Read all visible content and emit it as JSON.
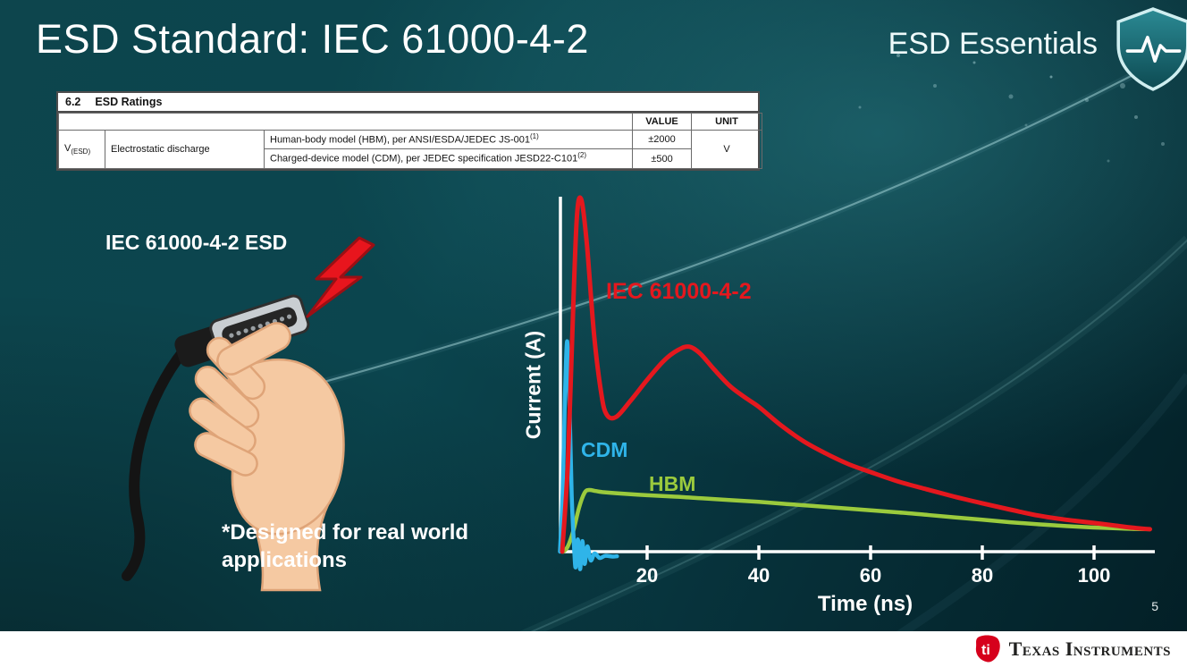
{
  "slide": {
    "title": "ESD Standard: IEC 61000-4-2",
    "brand": "ESD Essentials",
    "page_number": "5"
  },
  "footer": {
    "logo_text": "Texas Instruments",
    "logo_mark": "ti"
  },
  "ratings_table": {
    "section_number": "6.2",
    "section_title": "ESD Ratings",
    "headers": {
      "value": "VALUE",
      "unit": "UNIT"
    },
    "symbol_base": "V",
    "symbol_sub": "(ESD)",
    "parameter": "Electrostatic discharge",
    "rows": [
      {
        "condition": "Human-body model (HBM), per ANSI/ESDA/JEDEC JS-001",
        "condition_sup": "(1)",
        "value": "±2000"
      },
      {
        "condition": "Charged-device model (CDM), per JEDEC specification JESD22-C101",
        "condition_sup": "(2)",
        "value": "±500"
      }
    ],
    "unit": "V"
  },
  "left_panel": {
    "caption": "IEC 61000-4-2 ESD",
    "note": "*Designed for real world\napplications"
  },
  "chart_data": {
    "type": "line",
    "title": "",
    "xlabel": "Time (ns)",
    "ylabel": "Current (A)",
    "xlim": [
      0,
      112
    ],
    "ylim": [
      -0.08,
      1.05
    ],
    "xticks": [
      20,
      40,
      60,
      80,
      100
    ],
    "grid": false,
    "legend_position": "inline-annotations",
    "axis_color": "#ffffff",
    "series": [
      {
        "name": "IEC 61000-4-2",
        "color": "#e4181e",
        "width": 5,
        "points": [
          [
            4.8,
            0
          ],
          [
            5.8,
            0.25
          ],
          [
            6.6,
            0.62
          ],
          [
            7.4,
            0.95
          ],
          [
            8.2,
            1.005
          ],
          [
            9.2,
            0.88
          ],
          [
            10.5,
            0.62
          ],
          [
            11.8,
            0.45
          ],
          [
            12.8,
            0.39
          ],
          [
            14.5,
            0.385
          ],
          [
            17,
            0.43
          ],
          [
            20,
            0.49
          ],
          [
            23,
            0.545
          ],
          [
            25.5,
            0.575
          ],
          [
            27.5,
            0.585
          ],
          [
            29.5,
            0.565
          ],
          [
            32,
            0.52
          ],
          [
            35,
            0.47
          ],
          [
            38,
            0.435
          ],
          [
            40,
            0.413
          ],
          [
            44,
            0.36
          ],
          [
            48,
            0.315
          ],
          [
            52,
            0.28
          ],
          [
            56,
            0.25
          ],
          [
            60,
            0.227
          ],
          [
            65,
            0.2
          ],
          [
            70,
            0.178
          ],
          [
            75,
            0.157
          ],
          [
            80,
            0.138
          ],
          [
            85,
            0.12
          ],
          [
            90,
            0.103
          ],
          [
            95,
            0.091
          ],
          [
            100,
            0.082
          ],
          [
            104,
            0.074
          ],
          [
            107,
            0.068
          ],
          [
            110,
            0.064
          ]
        ]
      },
      {
        "name": "CDM",
        "color": "#2fb4e9",
        "width": 4.5,
        "points": [
          [
            4.4,
            0
          ],
          [
            4.9,
            0.18
          ],
          [
            5.3,
            0.45
          ],
          [
            5.7,
            0.6
          ],
          [
            6.1,
            0.42
          ],
          [
            6.5,
            0.16
          ],
          [
            6.9,
            0.02
          ],
          [
            7.2,
            -0.045
          ],
          [
            7.6,
            0.035
          ],
          [
            8.0,
            -0.05
          ],
          [
            8.4,
            0.03
          ],
          [
            8.8,
            -0.035
          ],
          [
            9.3,
            0.015
          ],
          [
            9.9,
            -0.025
          ],
          [
            10.6,
            -0.005
          ],
          [
            11.5,
            -0.018
          ],
          [
            12.5,
            -0.012
          ],
          [
            13.8,
            -0.014
          ],
          [
            14.6,
            -0.013
          ]
        ]
      },
      {
        "name": "HBM",
        "color": "#9bca3d",
        "width": 4.5,
        "points": [
          [
            5.0,
            0
          ],
          [
            5.8,
            0.015
          ],
          [
            6.8,
            0.06
          ],
          [
            7.8,
            0.125
          ],
          [
            8.8,
            0.168
          ],
          [
            9.6,
            0.176
          ],
          [
            10.8,
            0.173
          ],
          [
            12,
            0.17
          ],
          [
            15,
            0.166
          ],
          [
            20,
            0.161
          ],
          [
            25,
            0.157
          ],
          [
            30,
            0.152
          ],
          [
            35,
            0.147
          ],
          [
            40,
            0.142
          ],
          [
            45,
            0.136
          ],
          [
            50,
            0.13
          ],
          [
            55,
            0.124
          ],
          [
            60,
            0.118
          ],
          [
            65,
            0.112
          ],
          [
            70,
            0.105
          ],
          [
            75,
            0.098
          ],
          [
            80,
            0.091
          ],
          [
            85,
            0.084
          ],
          [
            90,
            0.078
          ],
          [
            95,
            0.073
          ],
          [
            100,
            0.069
          ],
          [
            105,
            0.066
          ],
          [
            108,
            0.0645
          ],
          [
            110,
            0.064
          ]
        ]
      }
    ]
  }
}
